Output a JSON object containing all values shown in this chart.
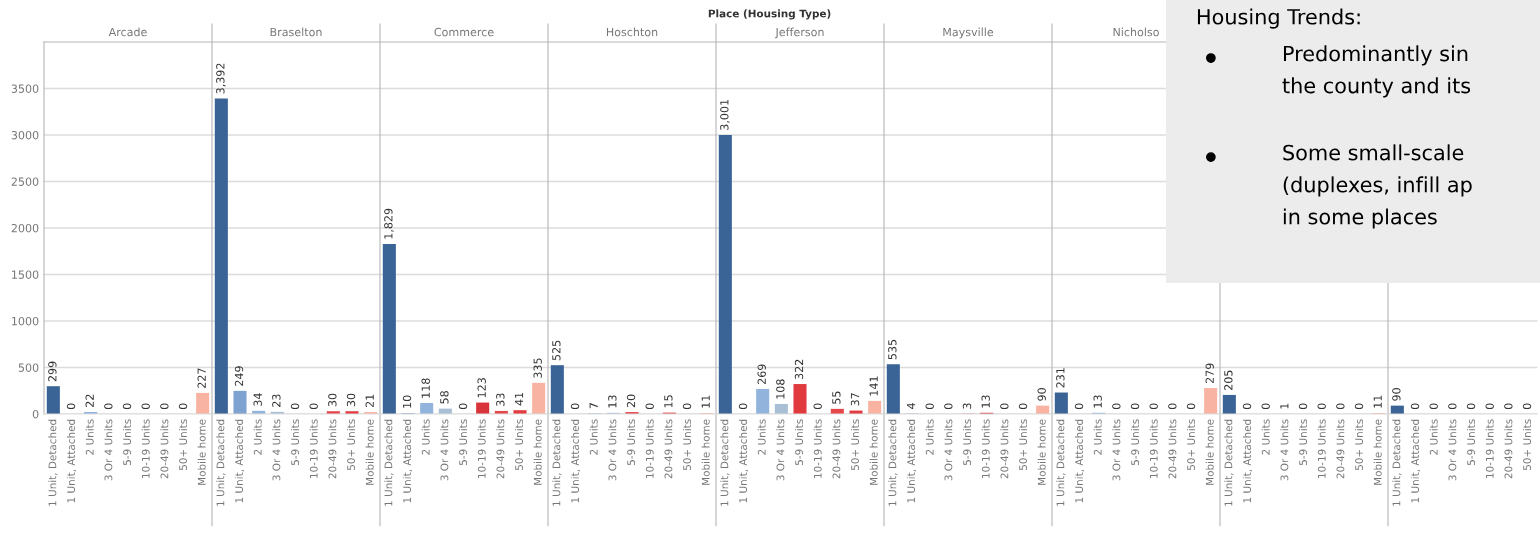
{
  "chart_data": [
    {
      "type": "bar",
      "title": "Place (Housing Type)",
      "annotations": [
        "Arcade",
        "Braselton",
        "Commerce",
        "Hoschton",
        "Jefferson",
        "Maysville",
        "Nicholso"
      ],
      "categories": [
        "1 Unit, Detached",
        "1 Unit, Attached",
        "2 Units",
        "3 Or 4 Units",
        "5-9 Units",
        "10-19 Units",
        "20-49 Units",
        "50+ Units",
        "Mobile home",
        "1 Unit, Detached",
        "1 Unit, Attached",
        "2 Units",
        "3 Or 4 Units",
        "5-9 Units",
        "10-19 Units",
        "20-49 Units",
        "50+ Units",
        "Mobile home",
        "1 Unit, Detached",
        "1 Unit, Attached",
        "2 Units",
        "3 Or 4 Units",
        "5-9 Units",
        "10-19 Units",
        "20-49 Units",
        "50+ Units",
        "Mobile home",
        "1 Unit, Detached",
        "1 Unit, Attached",
        "2 Units",
        "3 Or 4 Units",
        "5-9 Units",
        "10-19 Units",
        "20-49 Units",
        "50+ Units",
        "Mobile home",
        "1 Unit, Detached",
        "1 Unit, Attached",
        "2 Units",
        "3 Or 4 Units",
        "5-9 Units",
        "10-19 Units",
        "20-49 Units",
        "50+ Units",
        "Mobile home",
        "1 Unit, Detached",
        "1 Unit, Attached",
        "2 Units",
        "3 Or 4 Units",
        "5-9 Units",
        "10-19 Units",
        "20-49 Units",
        "50+ Units",
        "Mobile home",
        "1 Unit, Detached",
        "1 Unit, Attached",
        "2 Units",
        "3 Or 4 Units",
        "5-9 Units",
        "10-19 Units",
        "20-49 Units",
        "50+ Units",
        "Mobile home",
        "1 Unit, Detached",
        "1 Unit, Attached",
        "2 Units",
        "3 Or 4 Units",
        "5-9 Units",
        "10-19 Units",
        "20-49 Units",
        "50+ Units",
        "Mobile home",
        "1 Unit, Detached",
        "1 Unit, Attached",
        "2 Units",
        "3 Or 4 Units",
        "5-9 Units",
        "10-19 Units",
        "20-49 Units",
        "50+ Units"
      ],
      "values": [
        299,
        0,
        22,
        0,
        0,
        0,
        0,
        0,
        227,
        3392,
        249,
        34,
        23,
        0,
        0,
        30,
        30,
        21,
        1829,
        10,
        118,
        58,
        0,
        123,
        33,
        41,
        335,
        525,
        0,
        7,
        13,
        20,
        0,
        15,
        0,
        11,
        3001,
        0,
        269,
        108,
        322,
        0,
        55,
        37,
        141,
        535,
        4,
        0,
        0,
        3,
        13,
        0,
        0,
        90,
        231,
        0,
        13,
        0,
        0,
        0,
        0,
        0,
        279,
        205,
        0,
        0,
        1,
        0,
        0,
        0,
        0,
        11,
        90,
        0,
        0,
        0,
        0,
        0,
        0,
        0
      ],
      "value_labels": [
        "299",
        "0",
        "22",
        "0",
        "0",
        "0",
        "0",
        "0",
        "227",
        "3,392",
        "249",
        "34",
        "23",
        "0",
        "0",
        "30",
        "30",
        "21",
        "1,829",
        "10",
        "118",
        "58",
        "0",
        "123",
        "33",
        "41",
        "335",
        "525",
        "0",
        "7",
        "13",
        "20",
        "0",
        "15",
        "0",
        "11",
        "3,001",
        "0",
        "269",
        "108",
        "322",
        "0",
        "55",
        "37",
        "141",
        "535",
        "4",
        "0",
        "0",
        "3",
        "13",
        "0",
        "0",
        "90",
        "231",
        "0",
        "13",
        "0",
        "0",
        "0",
        "0",
        "0",
        "279",
        "205",
        "0",
        "0",
        "1",
        "0",
        "0",
        "0",
        "0",
        "11",
        "90",
        "0",
        "0",
        "0",
        "0",
        "0",
        "0",
        "0"
      ],
      "colors": [
        "#3b6496",
        "#7fa3d1",
        "#92b4dc",
        "#a8bfd6",
        "#e0393e",
        "#d9343a",
        "#e4464a",
        "#e23b41",
        "#f9b3a3",
        "#3b6496",
        "#7fa3d1",
        "#92b4dc",
        "#a8bfd6",
        "#e0393e",
        "#d9343a",
        "#e4464a",
        "#e23b41",
        "#f9b3a3",
        "#3b6496",
        "#7fa3d1",
        "#92b4dc",
        "#a8bfd6",
        "#e0393e",
        "#d9343a",
        "#e4464a",
        "#e23b41",
        "#f9b3a3",
        "#3b6496",
        "#7fa3d1",
        "#92b4dc",
        "#a8bfd6",
        "#e0393e",
        "#d9343a",
        "#e4464a",
        "#e23b41",
        "#f9b3a3",
        "#3b6496",
        "#7fa3d1",
        "#92b4dc",
        "#a8bfd6",
        "#e0393e",
        "#d9343a",
        "#e4464a",
        "#e23b41",
        "#f9b3a3",
        "#3b6496",
        "#7fa3d1",
        "#92b4dc",
        "#a8bfd6",
        "#e0393e",
        "#d9343a",
        "#e4464a",
        "#e23b41",
        "#f9b3a3",
        "#3b6496",
        "#7fa3d1",
        "#92b4dc",
        "#a8bfd6",
        "#e0393e",
        "#d9343a",
        "#e4464a",
        "#e23b41",
        "#f9b3a3",
        "#3b6496",
        "#7fa3d1",
        "#92b4dc",
        "#a8bfd6",
        "#e0393e",
        "#d9343a",
        "#e4464a",
        "#e23b41",
        "#f9b3a3",
        "#3b6496",
        "#7fa3d1",
        "#92b4dc",
        "#a8bfd6",
        "#e0393e",
        "#d9343a",
        "#e4464a",
        "#e23b41"
      ],
      "ylim": [
        0,
        4000
      ],
      "yticks": [
        0,
        500,
        1000,
        1500,
        2000,
        2500,
        3000,
        3500
      ],
      "grid": "y"
    },
    {
      "type": "other",
      "annotations": [
        "Housing Trends:",
        "Predominantly sin\nthe county and its",
        "Some small-scale\n(duplexes, infill ap\nin some places"
      ]
    }
  ]
}
